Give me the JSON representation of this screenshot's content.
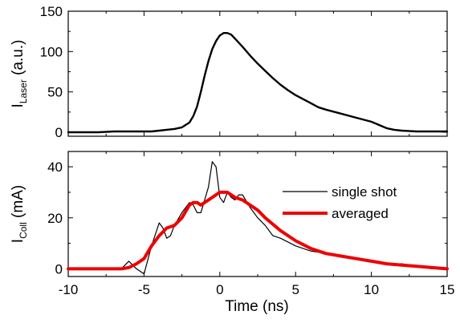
{
  "chart_data": [
    {
      "type": "line",
      "xlim": [
        -10,
        15
      ],
      "ylim": [
        -5,
        150
      ],
      "yticks": [
        0,
        50,
        100,
        150
      ],
      "xticks": [
        -10,
        -5,
        0,
        5,
        10,
        15
      ],
      "show_x_tick_labels": false,
      "ylabel": {
        "main": "I",
        "sub": "Laser",
        "rest": " (a.u.)"
      },
      "grid": false,
      "series": [
        {
          "color": "#000000",
          "x": [
            -10,
            -9,
            -8,
            -7,
            -6,
            -5,
            -4.5,
            -4,
            -3.5,
            -3,
            -2.5,
            -2,
            -1.75,
            -1.5,
            -1.25,
            -1,
            -0.75,
            -0.5,
            -0.25,
            0,
            0.25,
            0.5,
            0.75,
            1,
            1.5,
            2,
            2.5,
            3,
            3.5,
            4,
            4.5,
            5,
            5.5,
            6,
            6.5,
            7,
            8,
            9,
            10,
            10.5,
            11,
            11.5,
            12,
            13,
            14,
            15
          ],
          "y": [
            0,
            0,
            0,
            1,
            1,
            1,
            1,
            2,
            3,
            4,
            6,
            12,
            20,
            32,
            50,
            70,
            88,
            103,
            113,
            120,
            123,
            123,
            121,
            116,
            106,
            95,
            85,
            76,
            67,
            59,
            52,
            46,
            41,
            36,
            31,
            28,
            23,
            18,
            13,
            9,
            5,
            3,
            2,
            1,
            1,
            1
          ]
        }
      ]
    },
    {
      "type": "line",
      "xlim": [
        -10,
        15
      ],
      "ylim": [
        -3,
        46
      ],
      "yticks": [
        0,
        20,
        40
      ],
      "xticks": [
        -10,
        -5,
        0,
        5,
        10,
        15
      ],
      "xlabel": "Time (ns)",
      "ylabel": {
        "main": "I",
        "sub": "Coll",
        "rest": " (mA)"
      },
      "grid": false,
      "legend": "inside-right",
      "series": [
        {
          "name": "single shot",
          "color": "#000000",
          "x": [
            -10,
            -8,
            -6.5,
            -6,
            -5.5,
            -5,
            -4.5,
            -4,
            -3.75,
            -3.5,
            -3.25,
            -3,
            -2.5,
            -2,
            -1.75,
            -1.5,
            -1.25,
            -1,
            -0.75,
            -0.5,
            -0.25,
            0,
            0.25,
            0.5,
            0.75,
            1,
            1.25,
            1.5,
            2,
            2.5,
            3,
            3.5,
            4,
            5,
            6,
            7,
            8,
            9,
            10,
            11,
            12,
            13,
            14,
            15
          ],
          "y": [
            0,
            0,
            0,
            3,
            0,
            -2,
            9,
            18,
            16,
            12,
            13,
            17,
            22,
            26,
            25,
            22,
            22,
            27,
            32,
            42,
            40,
            28,
            26,
            30,
            28,
            27,
            29,
            29,
            24,
            20,
            17,
            13,
            12,
            9,
            7,
            6,
            5,
            4,
            3,
            2,
            2,
            1,
            0,
            0
          ]
        },
        {
          "name": "averaged",
          "color": "#ee0000",
          "x": [
            -10,
            -8,
            -6.5,
            -6,
            -5.5,
            -5,
            -4.5,
            -4,
            -3.5,
            -3,
            -2.5,
            -2,
            -1.75,
            -1.5,
            -1.25,
            -1,
            -0.5,
            0,
            0.5,
            1,
            1.5,
            2,
            2.5,
            3,
            4,
            5,
            6,
            7,
            8,
            9,
            10,
            11,
            12,
            13,
            14,
            15
          ],
          "y": [
            0,
            0,
            0,
            0.5,
            2,
            4,
            9,
            13,
            16,
            17,
            20,
            25,
            26,
            26,
            25,
            26,
            28,
            30,
            30,
            28,
            27,
            25,
            23,
            20,
            15,
            11,
            8,
            6,
            5,
            4,
            3,
            2,
            1.5,
            1,
            0.5,
            0
          ]
        }
      ]
    }
  ]
}
